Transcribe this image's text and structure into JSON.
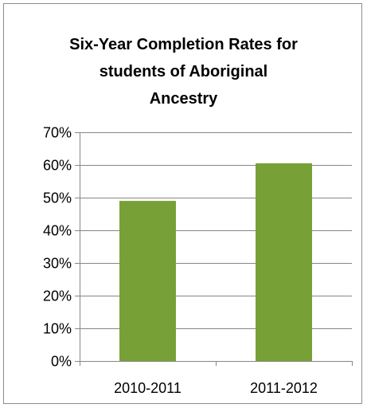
{
  "chart_data": {
    "type": "bar",
    "title_lines": [
      "Six-Year Completion Rates for",
      "students of Aboriginal",
      "Ancestry"
    ],
    "categories": [
      "2010-2011",
      "2011-2012"
    ],
    "values": [
      49,
      60.5
    ],
    "ylim": [
      0,
      70
    ],
    "yticks": [
      0,
      10,
      20,
      30,
      40,
      50,
      60,
      70
    ],
    "ytick_labels": [
      "0%",
      "10%",
      "20%",
      "30%",
      "40%",
      "50%",
      "60%",
      "70%"
    ],
    "xlabel": "",
    "ylabel": "",
    "grid": true,
    "legend": "none",
    "bar_color": "#77a037",
    "grid_color": "#868686",
    "axis_color": "#868686"
  }
}
